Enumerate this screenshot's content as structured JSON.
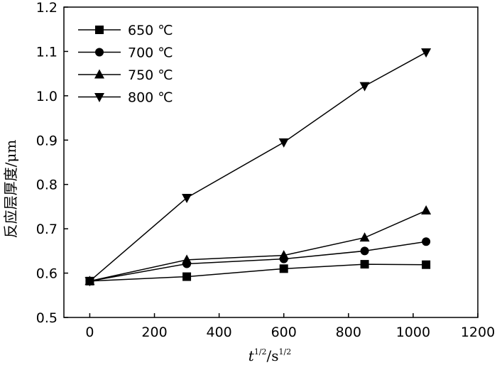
{
  "chart_data": {
    "type": "line",
    "title": "",
    "xlabel": {
      "var": "t",
      "var_sup": "1/2",
      "sep": "/",
      "unit": "s",
      "unit_sup": "1/2"
    },
    "ylabel": "反应层厚度/μm",
    "xlim": [
      -80,
      1200
    ],
    "ylim": [
      0.5,
      1.2
    ],
    "xticks": [
      0,
      200,
      400,
      600,
      800,
      1000,
      1200
    ],
    "xtick_labels": [
      "0",
      "200",
      "400",
      "600",
      "800",
      "1000",
      "1200"
    ],
    "yticks": [
      0.5,
      0.6,
      0.7,
      0.8,
      0.9,
      1.0,
      1.1,
      1.2
    ],
    "ytick_labels": [
      "0.5",
      "0.6",
      "0.7",
      "0.8",
      "0.9",
      "1.0",
      "1.1",
      "1.2"
    ],
    "grid": false,
    "legend_position": "top-left",
    "series": [
      {
        "name": "650 ℃",
        "marker": "square",
        "x": [
          0,
          300,
          600,
          850,
          1040
        ],
        "y": [
          0.582,
          0.592,
          0.61,
          0.62,
          0.619
        ]
      },
      {
        "name": "700 ℃",
        "marker": "circle",
        "x": [
          0,
          300,
          600,
          850,
          1040
        ],
        "y": [
          0.582,
          0.621,
          0.632,
          0.65,
          0.671
        ]
      },
      {
        "name": "750 ℃",
        "marker": "triangle-up",
        "x": [
          0,
          300,
          600,
          850,
          1040
        ],
        "y": [
          0.582,
          0.63,
          0.64,
          0.68,
          0.741
        ]
      },
      {
        "name": "800 ℃",
        "marker": "triangle-down",
        "x": [
          0,
          300,
          600,
          850,
          1040
        ],
        "y": [
          0.582,
          0.77,
          0.895,
          1.022,
          1.098
        ]
      }
    ],
    "colors": {
      "line": "#000000",
      "marker": "#000000",
      "axes": "#000000",
      "background": "#ffffff"
    }
  }
}
